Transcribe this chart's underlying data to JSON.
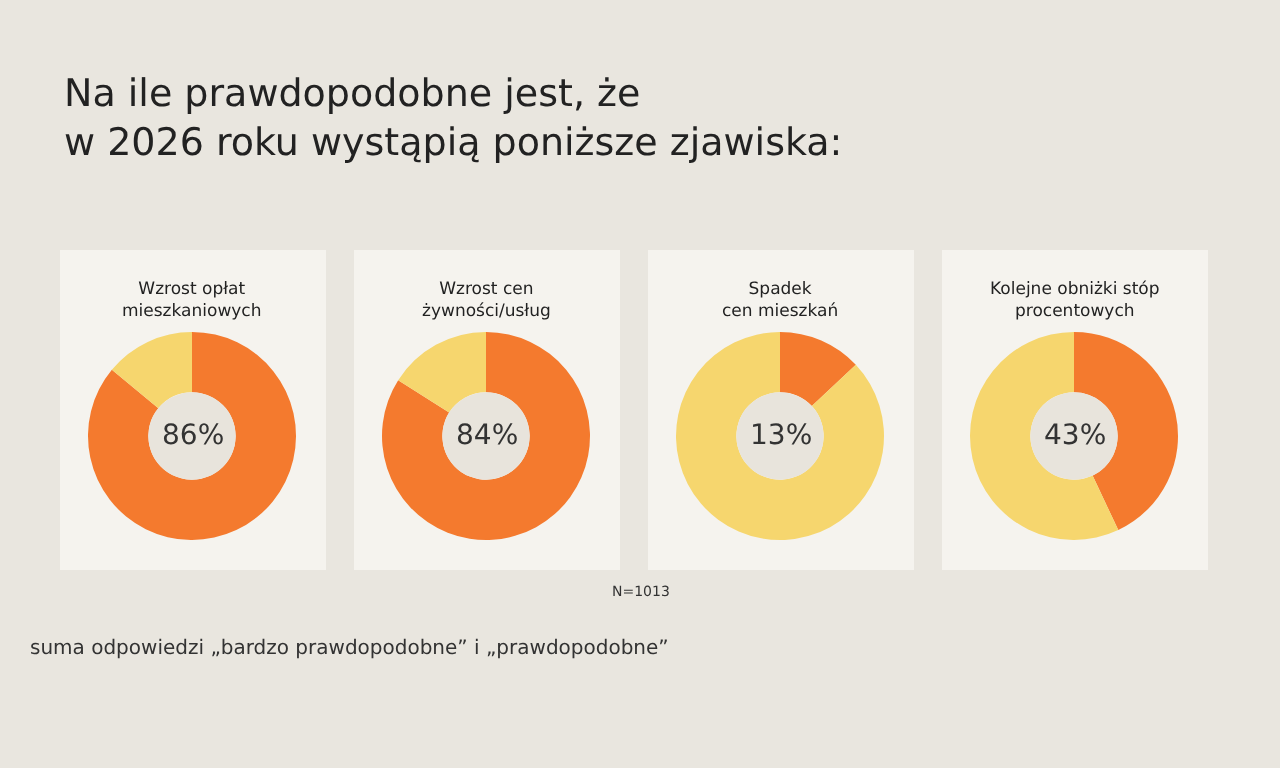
{
  "chart_data": [
    {
      "type": "other",
      "title": "Na ile prawdopodobne jest, że\nw 2026 roku wystąpią poniższe zjawiska:",
      "annotations": [
        "N=1013",
        "suma odpowiedzi „bardzo prawdopodobne” i „prawdopodobne”"
      ]
    },
    {
      "type": "donut",
      "title": "Wzrost opłat\nmieszkaniowych",
      "categories": [
        null,
        null
      ],
      "values": [
        86,
        14
      ],
      "colors": [
        "#f47a2e",
        "#f6d66e"
      ],
      "annotations": [
        "86%"
      ]
    },
    {
      "type": "donut",
      "title": "Wzrost cen\nżywności/usług",
      "categories": [
        null,
        null
      ],
      "values": [
        84,
        16
      ],
      "colors": [
        "#f47a2e",
        "#f6d66e"
      ],
      "annotations": [
        "84%"
      ]
    },
    {
      "type": "donut",
      "title": "Spadek\ncen mieszkań",
      "categories": [
        null,
        null
      ],
      "values": [
        13,
        87
      ],
      "colors": [
        "#f47a2e",
        "#f6d66e"
      ],
      "annotations": [
        "13%"
      ]
    },
    {
      "type": "donut",
      "title": "Kolejne obniżki stóp\nprocentowych",
      "categories": [
        null,
        null
      ],
      "values": [
        43,
        57
      ],
      "colors": [
        "#f47a2e",
        "#f6d66e"
      ],
      "annotations": [
        "43%"
      ]
    }
  ]
}
